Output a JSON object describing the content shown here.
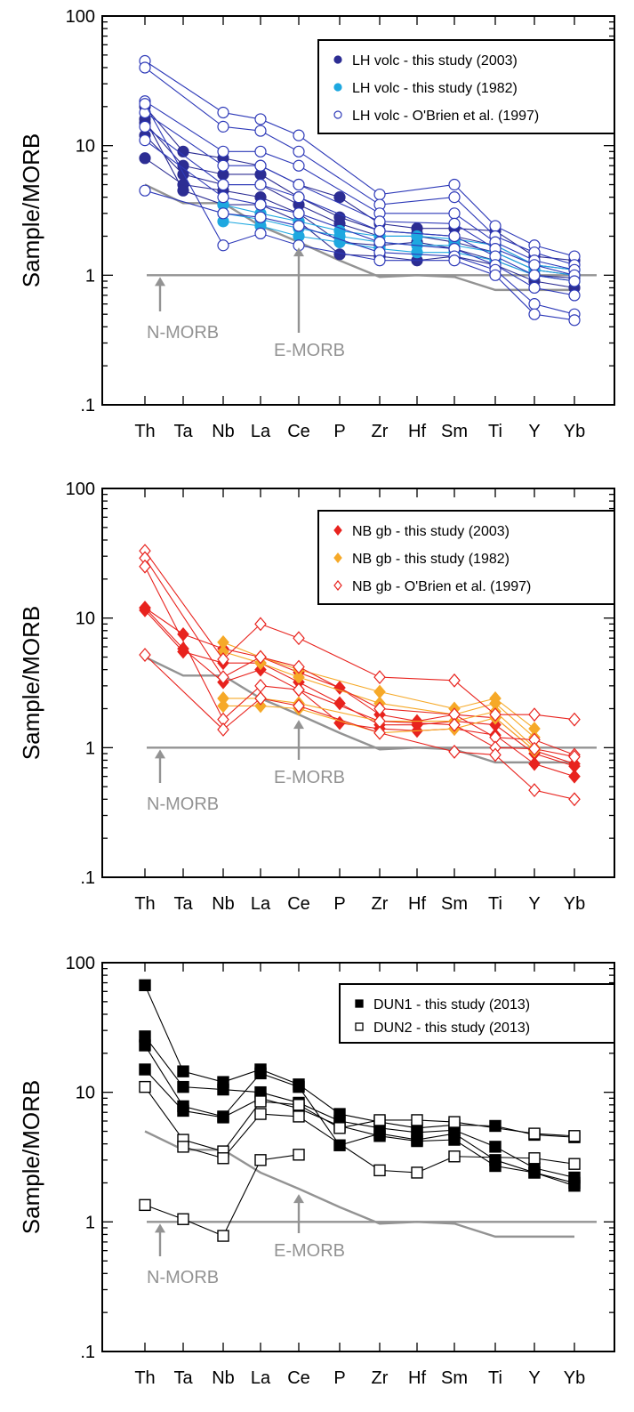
{
  "chart_data": [
    {
      "type": "line",
      "log_y": true,
      "ylabel": "Sample/MORB",
      "ylim": [
        0.1,
        100
      ],
      "y_tick_labels": [
        ".1",
        "1",
        "10",
        "100"
      ],
      "categories": [
        "Th",
        "Ta",
        "Nb",
        "La",
        "Ce",
        "P",
        "Zr",
        "Hf",
        "Sm",
        "Ti",
        "Y",
        "Yb"
      ],
      "legend_position": "top-right",
      "legend": [
        {
          "label": "LH volc - this study (2003)",
          "marker": "circle-filled",
          "color": "#2c2d93"
        },
        {
          "label": "LH volc - this study (1982)",
          "marker": "circle-filled",
          "color": "#1ea8e0"
        },
        {
          "label": "LH volc - O'Brien et al. (1997)",
          "marker": "circle-open",
          "color": "#2d39b8"
        }
      ],
      "references": [
        {
          "label": "N-MORB",
          "values": [
            1,
            1,
            1,
            1,
            1,
            1,
            1,
            1,
            1,
            1,
            1,
            1
          ]
        },
        {
          "label": "E-MORB",
          "values": [
            5.0,
            3.6,
            3.6,
            2.4,
            1.8,
            1.3,
            0.97,
            1.0,
            0.97,
            0.77,
            0.77,
            0.77
          ]
        }
      ],
      "series": [
        {
          "group": 0,
          "values": [
            20,
            9,
            8,
            7,
            5,
            4,
            2.5,
            2.3,
            2.3,
            2.2,
            1.4,
            1.3
          ]
        },
        {
          "group": 0,
          "values": [
            15,
            7,
            6,
            6,
            4,
            2.8,
            2.2,
            2.1,
            2.0,
            1.7,
            1.2,
            1.1
          ]
        },
        {
          "group": 0,
          "values": [
            12,
            6,
            5,
            5,
            3.5,
            2.5,
            2.0,
            2.0,
            1.8,
            1.5,
            1.1,
            1.0
          ]
        },
        {
          "group": 0,
          "values": [
            8,
            5,
            4.5,
            4,
            3.0,
            1.8,
            1.7,
            1.8,
            1.6,
            1.3,
            1.0,
            0.95
          ]
        },
        {
          "group": 0,
          "values": [
            16,
            4.5,
            3.5,
            3.5,
            2.6,
            1.45,
            1.4,
            1.3,
            1.4,
            1.2,
            0.9,
            0.8
          ]
        },
        {
          "group": 1,
          "values": [
            null,
            null,
            3.5,
            3.0,
            2.6,
            2.2,
            2.0,
            2.0,
            1.9,
            1.7,
            1.2,
            1.1
          ]
        },
        {
          "group": 1,
          "values": [
            null,
            null,
            3.0,
            2.7,
            2.3,
            2.0,
            1.8,
            1.7,
            1.7,
            1.5,
            1.1,
            1.0
          ]
        },
        {
          "group": 1,
          "values": [
            null,
            null,
            2.6,
            2.4,
            2.0,
            1.8,
            1.6,
            1.5,
            1.5,
            1.3,
            1.0,
            0.9
          ]
        },
        {
          "group": 2,
          "values": [
            45,
            null,
            18,
            16,
            12,
            null,
            4.2,
            null,
            5.0,
            2.4,
            1.7,
            1.4
          ]
        },
        {
          "group": 2,
          "values": [
            40,
            null,
            14,
            13,
            9,
            null,
            3.5,
            null,
            4.0,
            2.0,
            1.5,
            1.2
          ]
        },
        {
          "group": 2,
          "values": [
            22,
            null,
            9,
            9,
            7,
            null,
            3.0,
            null,
            3.0,
            1.8,
            1.3,
            1.1
          ]
        },
        {
          "group": 2,
          "values": [
            18,
            null,
            7,
            7,
            5,
            null,
            2.6,
            null,
            2.5,
            1.6,
            1.2,
            1.0
          ]
        },
        {
          "group": 2,
          "values": [
            14,
            null,
            5,
            5,
            4,
            null,
            2.2,
            null,
            2.0,
            1.4,
            1.0,
            0.9
          ]
        },
        {
          "group": 2,
          "values": [
            11,
            null,
            4,
            3.5,
            3,
            null,
            1.8,
            null,
            1.6,
            1.2,
            0.8,
            0.7
          ]
        },
        {
          "group": 2,
          "values": [
            4.5,
            null,
            3.0,
            2.8,
            2.4,
            null,
            1.5,
            null,
            1.4,
            1.1,
            0.6,
            0.5
          ]
        },
        {
          "group": 2,
          "values": [
            21,
            null,
            1.7,
            2.1,
            1.7,
            null,
            1.3,
            null,
            1.3,
            1.0,
            0.5,
            0.45
          ]
        }
      ]
    },
    {
      "type": "line",
      "log_y": true,
      "ylabel": "Sample/MORB",
      "ylim": [
        0.1,
        100
      ],
      "y_tick_labels": [
        ".1",
        "1",
        "10",
        "100"
      ],
      "categories": [
        "Th",
        "Ta",
        "Nb",
        "La",
        "Ce",
        "P",
        "Zr",
        "Hf",
        "Sm",
        "Ti",
        "Y",
        "Yb"
      ],
      "legend_position": "top-right",
      "legend": [
        {
          "label": "NB gb - this study (2003)",
          "marker": "diamond-filled",
          "color": "#e8231e"
        },
        {
          "label": "NB gb - this study (1982)",
          "marker": "diamond-filled",
          "color": "#f6a928"
        },
        {
          "label": "NB gb - O'Brien et al. (1997)",
          "marker": "diamond-open",
          "color": "#e8231e"
        }
      ],
      "references": [
        {
          "label": "N-MORB",
          "values": [
            1,
            1,
            1,
            1,
            1,
            1,
            1,
            1,
            1,
            1,
            1,
            1
          ]
        },
        {
          "label": "E-MORB",
          "values": [
            5.0,
            3.6,
            3.6,
            2.4,
            1.8,
            1.3,
            0.97,
            1.0,
            0.97,
            0.77,
            0.77,
            0.77
          ]
        }
      ],
      "series": [
        {
          "group": 0,
          "values": [
            12,
            7.5,
            5.8,
            5.0,
            3.8,
            2.9,
            1.8,
            1.6,
            1.8,
            1.7,
            0.95,
            0.75
          ]
        },
        {
          "group": 0,
          "values": [
            11.5,
            5.5,
            4.5,
            4.5,
            3.2,
            2.2,
            1.5,
            1.5,
            1.6,
            1.5,
            0.9,
            0.72
          ]
        },
        {
          "group": 0,
          "values": [
            12,
            5.8,
            3.2,
            4.0,
            2.8,
            1.55,
            1.4,
            1.35,
            1.4,
            1.25,
            0.75,
            0.6
          ]
        },
        {
          "group": 1,
          "values": [
            null,
            null,
            6.5,
            5.0,
            4.0,
            null,
            2.7,
            null,
            2.0,
            2.4,
            1.4,
            null
          ]
        },
        {
          "group": 1,
          "values": [
            null,
            null,
            5.5,
            4.5,
            3.5,
            null,
            2.2,
            null,
            1.8,
            2.2,
            1.2,
            null
          ]
        },
        {
          "group": 1,
          "values": [
            null,
            null,
            2.4,
            2.4,
            2.2,
            null,
            1.6,
            null,
            1.6,
            1.9,
            1.0,
            null
          ]
        },
        {
          "group": 1,
          "values": [
            null,
            null,
            2.1,
            2.1,
            2.0,
            null,
            1.3,
            null,
            1.4,
            1.7,
            0.95,
            null
          ]
        },
        {
          "group": 2,
          "values": [
            33,
            null,
            4.8,
            9.0,
            7.0,
            null,
            3.5,
            null,
            3.3,
            1.8,
            1.8,
            1.65
          ]
        },
        {
          "group": 2,
          "values": [
            29,
            null,
            3.5,
            5.0,
            4.2,
            null,
            2.0,
            null,
            1.8,
            1.2,
            1.15,
            0.88
          ]
        },
        {
          "group": 2,
          "values": [
            25,
            null,
            1.65,
            3.0,
            2.8,
            null,
            1.6,
            null,
            1.5,
            1.0,
            0.98,
            0.85
          ]
        },
        {
          "group": 2,
          "values": [
            5.2,
            null,
            1.38,
            2.4,
            2.1,
            null,
            1.3,
            null,
            0.93,
            0.88,
            0.47,
            0.4
          ]
        }
      ]
    },
    {
      "type": "line",
      "log_y": true,
      "ylabel": "Sample/MORB",
      "ylim": [
        0.1,
        100
      ],
      "y_tick_labels": [
        ".1",
        "1",
        "10",
        "100"
      ],
      "categories": [
        "Th",
        "Ta",
        "Nb",
        "La",
        "Ce",
        "P",
        "Zr",
        "Hf",
        "Sm",
        "Ti",
        "Y",
        "Yb"
      ],
      "legend_position": "top-right",
      "legend": [
        {
          "label": "DUN1 - this study (2013)",
          "marker": "square-filled",
          "color": "#000000"
        },
        {
          "label": "DUN2 - this study (2013)",
          "marker": "square-open",
          "color": "#000000"
        }
      ],
      "references": [
        {
          "label": "N-MORB",
          "values": [
            1,
            1,
            1,
            1,
            1,
            1,
            1,
            1,
            1,
            1,
            1,
            1
          ]
        },
        {
          "label": "E-MORB",
          "values": [
            5.0,
            3.6,
            3.6,
            2.4,
            1.8,
            1.3,
            0.97,
            1.0,
            0.97,
            0.77,
            0.77,
            0.77
          ]
        }
      ],
      "series": [
        {
          "group": 0,
          "values": [
            67,
            14.5,
            12.0,
            15.0,
            11.5,
            6.8,
            5.9,
            5.3,
            5.6,
            5.5,
            4.7,
            4.5
          ]
        },
        {
          "group": 0,
          "values": [
            27,
            11.0,
            10.5,
            10.0,
            8.3,
            6.0,
            5.3,
            4.9,
            5.1,
            3.8,
            2.6,
            2.2
          ]
        },
        {
          "group": 0,
          "values": [
            23,
            7.8,
            6.5,
            14.0,
            11.0,
            3.9,
            4.8,
            4.3,
            4.8,
            3.0,
            2.4,
            2.0
          ]
        },
        {
          "group": 0,
          "values": [
            15,
            7.2,
            6.4,
            9.0,
            7.5,
            5.5,
            4.6,
            4.2,
            4.3,
            2.7,
            2.4,
            1.9
          ]
        },
        {
          "group": 1,
          "values": [
            11,
            4.3,
            3.5,
            8.5,
            8.0,
            5.3,
            6.1,
            6.1,
            5.9,
            null,
            4.8,
            4.6
          ]
        },
        {
          "group": 1,
          "values": [
            null,
            3.8,
            3.1,
            6.8,
            6.5,
            null,
            2.5,
            2.4,
            3.2,
            null,
            3.1,
            2.8
          ]
        },
        {
          "group": 1,
          "values": [
            1.35,
            1.05,
            0.78,
            3.0,
            3.3,
            null,
            null,
            null,
            null,
            null,
            null,
            null
          ]
        }
      ]
    }
  ],
  "colors": {
    "axis": "#000000",
    "reference": "#939393",
    "panel1": {
      "dark": "#2c2d93",
      "light": "#1ea8e0",
      "open": "#2d39b8"
    },
    "panel2": {
      "red": "#e8231e",
      "orange": "#f6a928"
    },
    "panel3": {
      "black": "#000000"
    }
  }
}
